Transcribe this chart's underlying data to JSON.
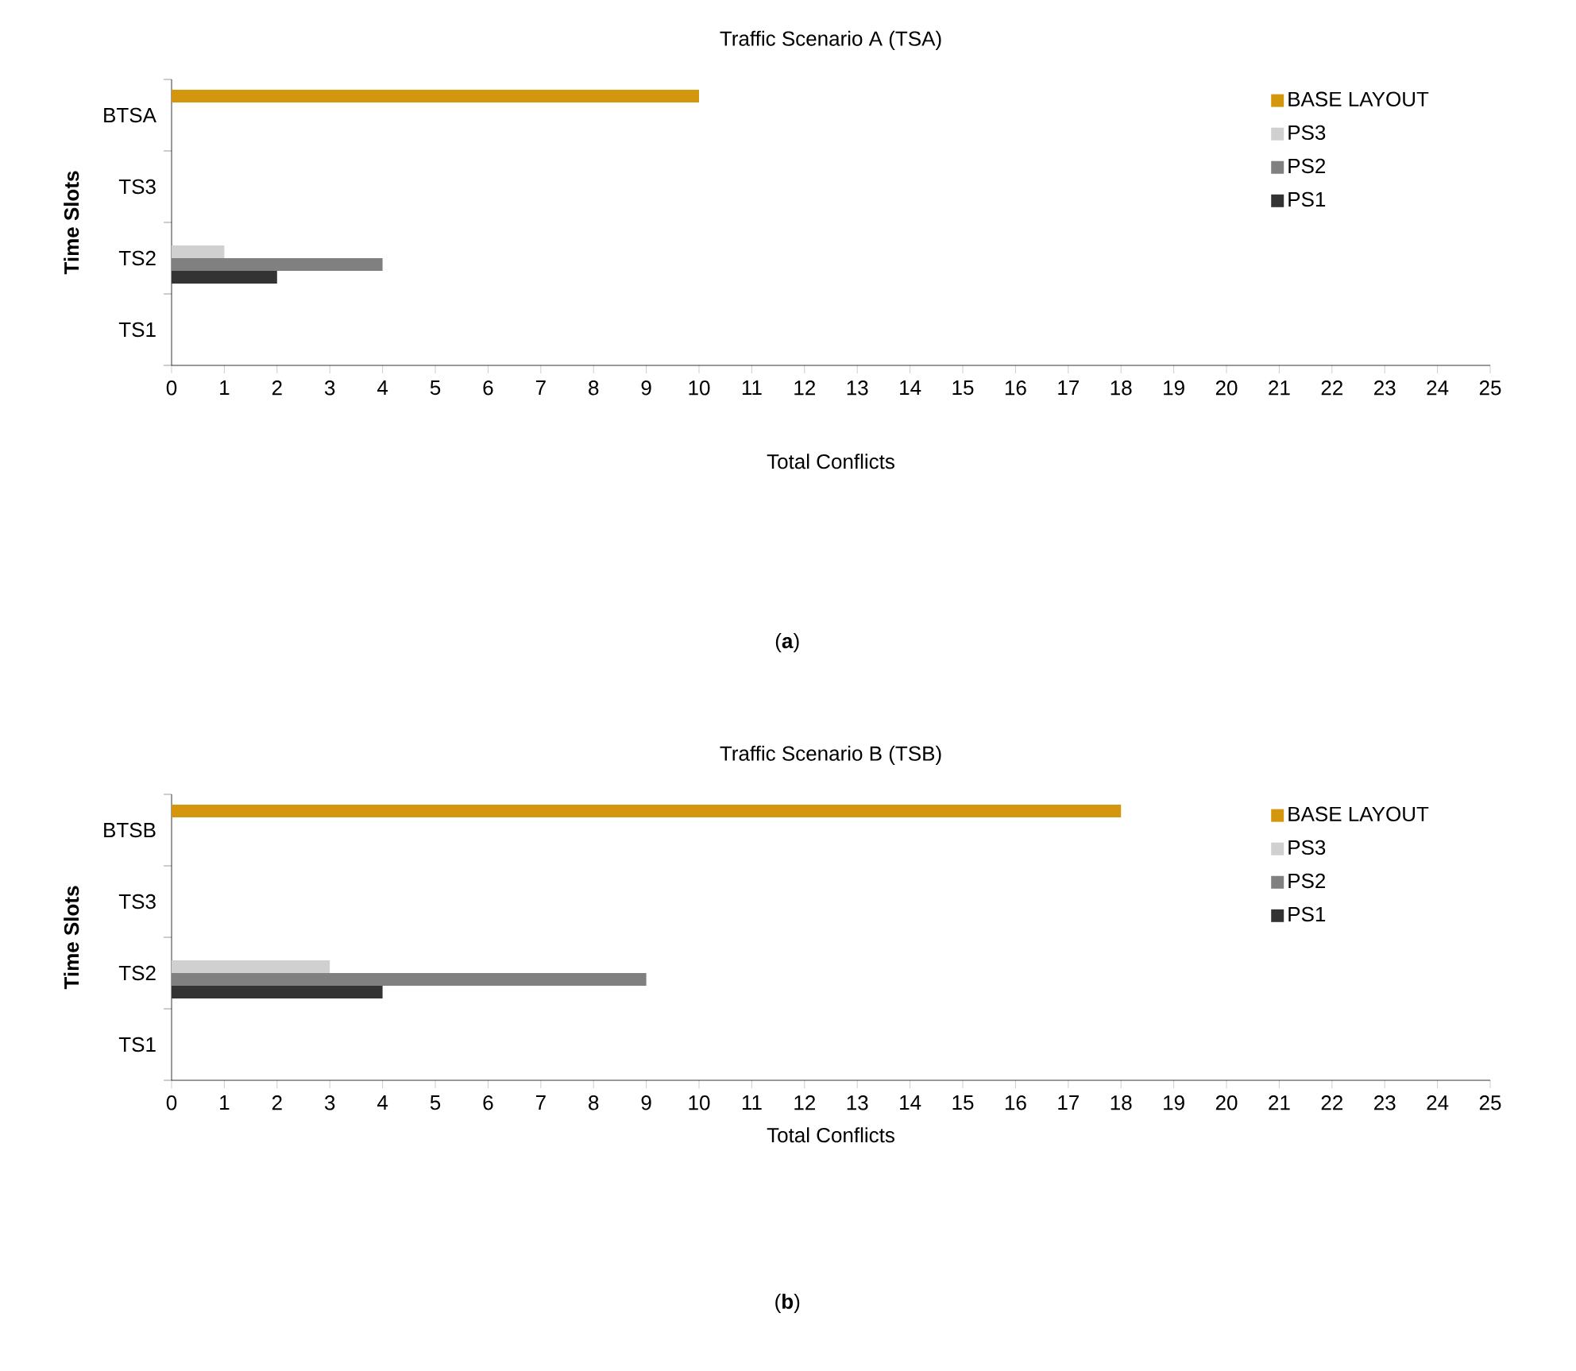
{
  "chart_data": [
    {
      "type": "bar",
      "orientation": "horizontal",
      "title": "Traffic Scenario A (TSA)",
      "xlabel": "Total Conflicts",
      "ylabel": "Time Slots",
      "categories": [
        "BTSA",
        "TS3",
        "TS2",
        "TS1"
      ],
      "series": [
        {
          "name": "PS1",
          "color": "#333333",
          "values": [
            null,
            null,
            2,
            null
          ]
        },
        {
          "name": "PS2",
          "color": "#808080",
          "values": [
            null,
            null,
            4,
            null
          ]
        },
        {
          "name": "PS3",
          "color": "#d0d0d0",
          "values": [
            null,
            null,
            1,
            null
          ]
        },
        {
          "name": "BASE LAYOUT",
          "color": "#d4960c",
          "values": [
            10,
            null,
            null,
            null
          ]
        }
      ],
      "xlim": [
        0,
        25
      ],
      "xticks": [
        0,
        1,
        2,
        3,
        4,
        5,
        6,
        7,
        8,
        9,
        10,
        11,
        12,
        13,
        14,
        15,
        16,
        17,
        18,
        19,
        20,
        21,
        22,
        23,
        24,
        25
      ],
      "legend": "top right",
      "annotations": [
        "(**a**)"
      ]
    },
    {
      "type": "bar",
      "orientation": "horizontal",
      "title": "Traffic Scenario B (TSB)",
      "xlabel": "Total Conflicts",
      "ylabel": "Time Slots",
      "categories": [
        "BTSB",
        "TS3",
        "TS2",
        "TS1"
      ],
      "series": [
        {
          "name": "PS1",
          "color": "#333333",
          "values": [
            null,
            null,
            4,
            null
          ]
        },
        {
          "name": "PS2",
          "color": "#808080",
          "values": [
            null,
            null,
            9,
            null
          ]
        },
        {
          "name": "PS3",
          "color": "#d0d0d0",
          "values": [
            null,
            null,
            3,
            null
          ]
        },
        {
          "name": "BASE LAYOUT",
          "color": "#d4960c",
          "values": [
            18,
            null,
            null,
            null
          ]
        }
      ],
      "xlim": [
        0,
        25
      ],
      "xticks": [
        0,
        1,
        2,
        3,
        4,
        5,
        6,
        7,
        8,
        9,
        10,
        11,
        12,
        13,
        14,
        15,
        16,
        17,
        18,
        19,
        20,
        21,
        22,
        23,
        24,
        25
      ],
      "legend": "top right",
      "annotations": [
        "(**b**)"
      ]
    }
  ]
}
